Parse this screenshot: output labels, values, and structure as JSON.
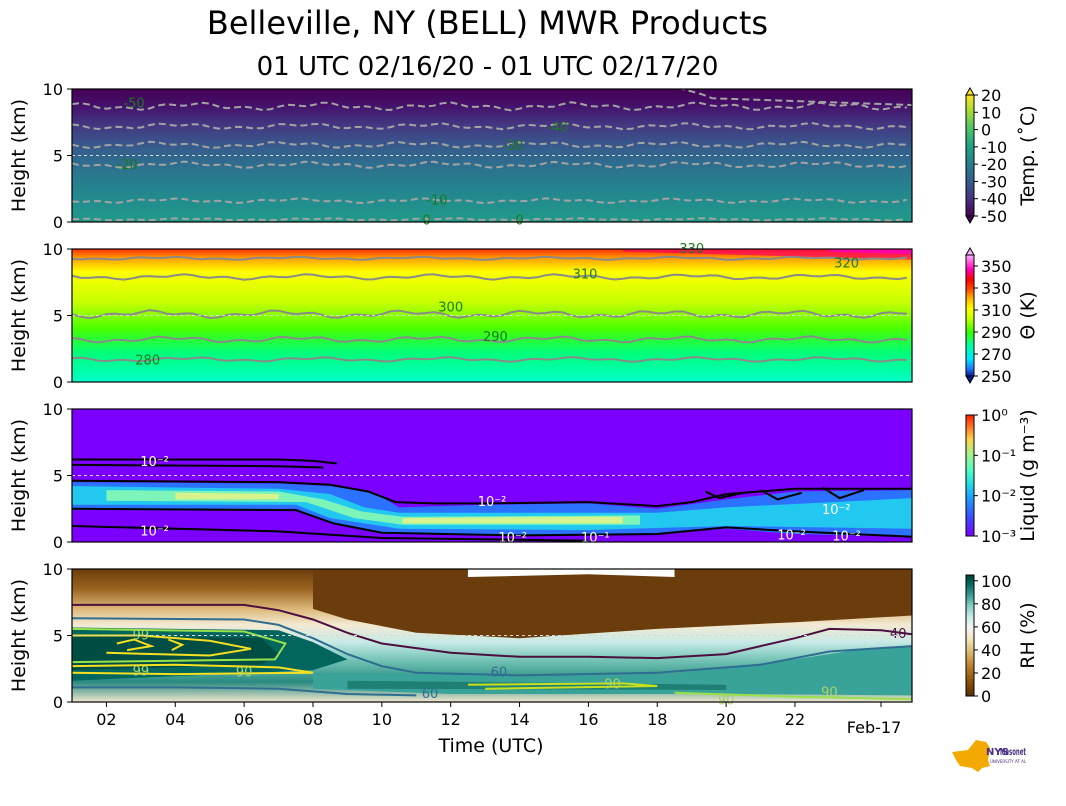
{
  "title": "Belleville, NY (BELL) MWR Products",
  "subtitle": "01 UTC 02/16/20 - 01 UTC 02/17/20",
  "chart_data": {
    "type": "heatmap",
    "x_axis": {
      "label": "Time (UTC)",
      "range_hours": [
        1,
        25.4
      ],
      "ticks": [
        {
          "hour": 2,
          "label": "02"
        },
        {
          "hour": 4,
          "label": "04"
        },
        {
          "hour": 6,
          "label": "06"
        },
        {
          "hour": 8,
          "label": "08"
        },
        {
          "hour": 10,
          "label": "10"
        },
        {
          "hour": 12,
          "label": "12"
        },
        {
          "hour": 14,
          "label": "14"
        },
        {
          "hour": 16,
          "label": "16"
        },
        {
          "hour": 18,
          "label": "18"
        },
        {
          "hour": 20,
          "label": "20"
        },
        {
          "hour": 22,
          "label": "22"
        },
        {
          "hour": 24.5,
          "label": "Feb-17"
        }
      ]
    },
    "panels": [
      {
        "id": "temperature",
        "ylabel": "Height (km)",
        "ylim": [
          0,
          10
        ],
        "yticks": [
          "0",
          "5",
          "10"
        ],
        "colorbar": {
          "label": "Temp. (˚C)",
          "range": [
            -50,
            20
          ],
          "ticks": [
            "20",
            "10",
            "0",
            "-10",
            "-20",
            "-30",
            "-40",
            "-50"
          ],
          "colors": [
            "#440154",
            "#472d7b",
            "#3b528b",
            "#2c728e",
            "#21918c",
            "#28ae80",
            "#5ec962",
            "#addc30",
            "#fde725"
          ]
        },
        "contour_labels": [
          {
            "text": "-50",
            "hour": 2.8,
            "height": 8.9
          },
          {
            "text": "-40",
            "hour": 15.1,
            "height": 7.1
          },
          {
            "text": "-30",
            "hour": 13.8,
            "height": 5.7
          },
          {
            "text": "-20",
            "hour": 2.6,
            "height": 4.3
          },
          {
            "text": "-10",
            "hour": 11.6,
            "height": 1.6
          },
          {
            "text": "0",
            "hour": 11.3,
            "height": 0.1
          },
          {
            "text": "0",
            "hour": 14.0,
            "height": 0.1
          }
        ]
      },
      {
        "id": "theta",
        "ylabel": "Height (km)",
        "ylim": [
          0,
          10
        ],
        "yticks": [
          "0",
          "5",
          "10"
        ],
        "colorbar": {
          "label": "Θ (K)",
          "range": [
            250,
            360
          ],
          "ticks": [
            "350",
            "330",
            "310",
            "290",
            "270",
            "250"
          ],
          "colors": [
            "#0a1a90",
            "#1f78ff",
            "#00e6ff",
            "#00ffb4",
            "#32ff00",
            "#c8ff00",
            "#ffff00",
            "#ffb400",
            "#ff4600",
            "#ff0000",
            "#ff00b4",
            "#ff9bff"
          ]
        },
        "contour_labels": [
          {
            "text": "280",
            "hour": 3.2,
            "height": 1.6
          },
          {
            "text": "290",
            "hour": 13.3,
            "height": 3.4
          },
          {
            "text": "300",
            "hour": 12.0,
            "height": 5.6
          },
          {
            "text": "310",
            "hour": 15.9,
            "height": 8.1
          },
          {
            "text": "320",
            "hour": 23.5,
            "height": 8.9
          },
          {
            "text": "330",
            "hour": 19.0,
            "height": 10.0
          }
        ]
      },
      {
        "id": "liquid",
        "ylabel": "Height (km)",
        "ylim": [
          0,
          10
        ],
        "yticks": [
          "0",
          "5",
          "10"
        ],
        "colorbar": {
          "label": "Liquid (g m⁻³)",
          "scale": "log",
          "range": [
            0.001,
            1
          ],
          "ticks": [
            "10⁰",
            "10⁻¹",
            "10⁻²",
            "10⁻³"
          ],
          "colors": [
            "#7b00ff",
            "#3c4bff",
            "#1e96ff",
            "#20d8e8",
            "#55ffc0",
            "#aaf08c",
            "#ffd24b",
            "#ff7828",
            "#ff1e00"
          ]
        },
        "contour_labels": [
          {
            "text": "10⁻²",
            "hour": 3.4,
            "height": 6.0
          },
          {
            "text": "10⁻²",
            "hour": 3.4,
            "height": 0.8
          },
          {
            "text": "10⁻²",
            "hour": 13.2,
            "height": 3.0
          },
          {
            "text": "10⁻²",
            "hour": 13.8,
            "height": 0.3
          },
          {
            "text": "10⁻¹",
            "hour": 16.2,
            "height": 0.3
          },
          {
            "text": "10⁻²",
            "hour": 21.9,
            "height": 0.5
          },
          {
            "text": "10⁻²",
            "hour": 23.5,
            "height": 0.4
          },
          {
            "text": "10⁻²",
            "hour": 23.2,
            "height": 2.4
          }
        ]
      },
      {
        "id": "rh",
        "ylabel": "Height (km)",
        "ylim": [
          0,
          10
        ],
        "yticks": [
          "0",
          "5",
          "10"
        ],
        "colorbar": {
          "label": "RH (%)",
          "range": [
            0,
            105
          ],
          "ticks": [
            "100",
            "80",
            "60",
            "40",
            "20",
            "0"
          ],
          "colors": [
            "#543005",
            "#8c510a",
            "#bf812d",
            "#dfc27d",
            "#f6e8c3",
            "#f5f5f5",
            "#c7eae5",
            "#80cdc1",
            "#35978f",
            "#01665e",
            "#003c30"
          ]
        },
        "contour_labels": [
          {
            "text": "99",
            "hour": 3.0,
            "height": 5.0
          },
          {
            "text": "99",
            "hour": 3.0,
            "height": 2.3
          },
          {
            "text": "90",
            "hour": 6.0,
            "height": 2.2
          },
          {
            "text": "60",
            "hour": 11.4,
            "height": 0.6
          },
          {
            "text": "60",
            "hour": 13.4,
            "height": 2.2
          },
          {
            "text": "90",
            "hour": 16.7,
            "height": 1.3
          },
          {
            "text": "90",
            "hour": 20.0,
            "height": 0.1
          },
          {
            "text": "90",
            "hour": 23.0,
            "height": 0.7
          },
          {
            "text": "40",
            "hour": 25.0,
            "height": 5.1
          }
        ]
      }
    ]
  },
  "logo": {
    "text": "NYS Mesonet",
    "subtext": "UNIVERSITY AT ALBANY"
  }
}
